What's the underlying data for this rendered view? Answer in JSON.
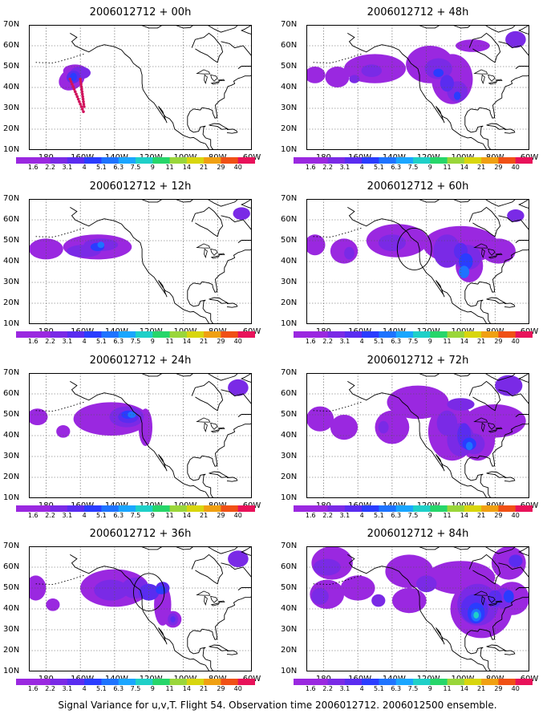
{
  "figure": {
    "caption": "Signal Variance for u,v,T. Flight 54. Observation time 2006012712. 2006012500 ensemble.",
    "y_ticks": [
      "70N",
      "60N",
      "50N",
      "40N",
      "30N",
      "20N",
      "10N"
    ],
    "x_ticks": [
      "180",
      "160W",
      "140W",
      "120W",
      "100W",
      "80W",
      "60W"
    ],
    "colorbar_levels": [
      "1.6",
      "2.2",
      "3.1",
      "4",
      "5.1",
      "6.3",
      "7.5",
      "9",
      "11",
      "14",
      "21",
      "29",
      "40"
    ],
    "colorbar_colors": [
      "#9a28e0",
      "#7a2ae6",
      "#5a2cf0",
      "#2a3cff",
      "#1e73ff",
      "#1aa6ff",
      "#1fd0c8",
      "#26d66a",
      "#9ad63a",
      "#d8d60e",
      "#f0a012",
      "#f05015",
      "#e8125a"
    ],
    "lon_range": [
      -190,
      -60
    ],
    "lat_range": [
      10,
      70
    ],
    "grid": true
  },
  "panels": [
    {
      "title": "2006012712 + 00h"
    },
    {
      "title": "2006012712 + 48h"
    },
    {
      "title": "2006012712 + 12h"
    },
    {
      "title": "2006012712 + 60h"
    },
    {
      "title": "2006012712 + 24h"
    },
    {
      "title": "2006012712 + 72h"
    },
    {
      "title": "2006012712 + 36h"
    },
    {
      "title": "2006012712 + 84h"
    }
  ]
}
